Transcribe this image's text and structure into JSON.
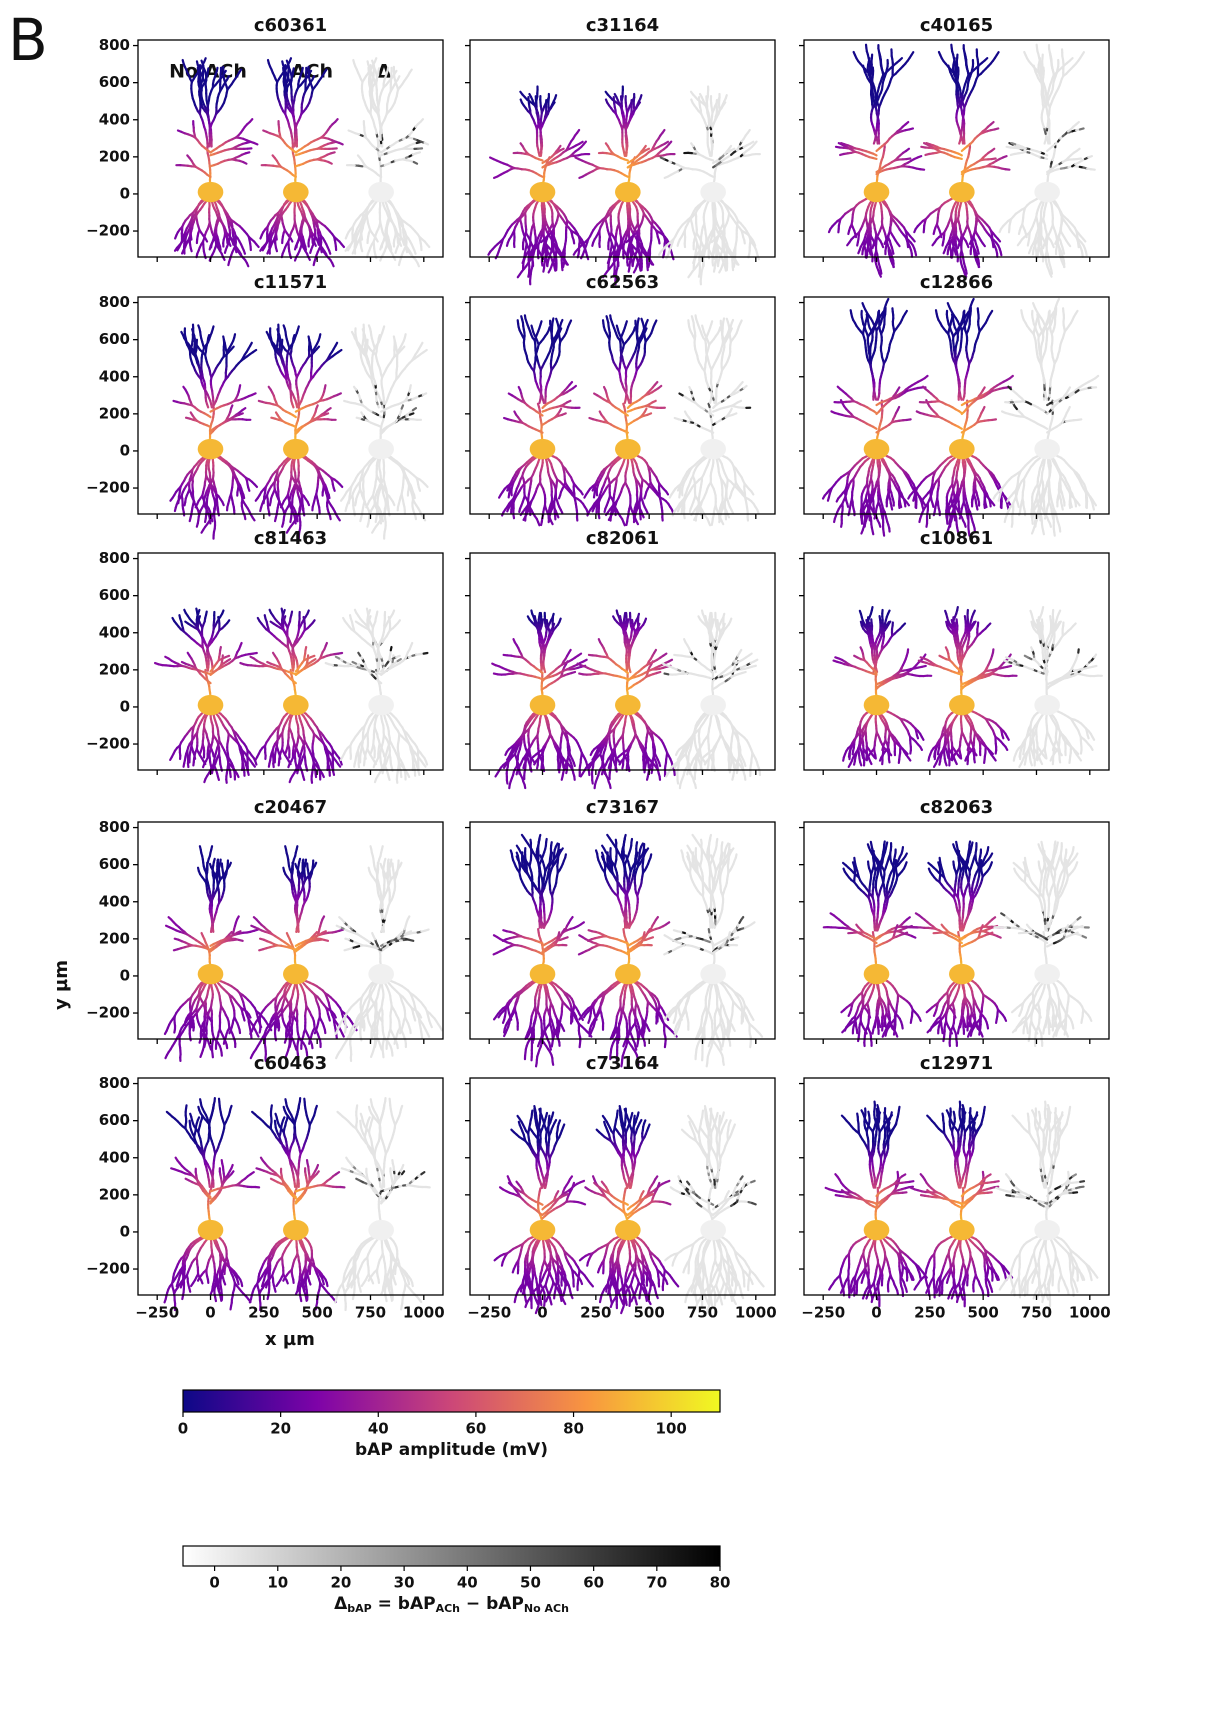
{
  "figure_label": "B",
  "column_labels": [
    "No ACh",
    "ACh",
    "Δ"
  ],
  "axes": {
    "xlabel": "x µm",
    "ylabel": "y µm",
    "xlim": [
      -340,
      1090
    ],
    "ylim": [
      -340,
      830
    ],
    "xticks": [
      {
        "value": -250,
        "label": "−250"
      },
      0,
      250,
      500,
      750,
      1000
    ],
    "yticks": [
      {
        "value": -200,
        "label": "−200"
      },
      0,
      200,
      400,
      600,
      800
    ]
  },
  "chart_data": [
    {
      "type": "neuron",
      "title": "c60361"
    },
    {
      "type": "neuron",
      "title": "c31164"
    },
    {
      "type": "neuron",
      "title": "c40165"
    },
    {
      "type": "neuron",
      "title": "c11571"
    },
    {
      "type": "neuron",
      "title": "c62563"
    },
    {
      "type": "neuron",
      "title": "c12866"
    },
    {
      "type": "neuron",
      "title": "c81463"
    },
    {
      "type": "neuron",
      "title": "c82061"
    },
    {
      "type": "neuron",
      "title": "c10861"
    },
    {
      "type": "neuron",
      "title": "c20467"
    },
    {
      "type": "neuron",
      "title": "c73167"
    },
    {
      "type": "neuron",
      "title": "c82063"
    },
    {
      "type": "neuron",
      "title": "c60463"
    },
    {
      "type": "neuron",
      "title": "c73164"
    },
    {
      "type": "neuron",
      "title": "c12971"
    }
  ],
  "colorbars": [
    {
      "label": "bAP amplitude (mV)",
      "colormap": "plasma",
      "lim": [
        0,
        110
      ],
      "ticks": [
        0,
        20,
        40,
        60,
        80,
        100
      ]
    },
    {
      "label_parts": [
        {
          "text": "Δ"
        },
        {
          "text": "bAP",
          "sub": true
        },
        {
          "text": " = bAP"
        },
        {
          "text": "ACh",
          "sub": true
        },
        {
          "text": " − bAP"
        },
        {
          "text": "No ACh",
          "sub": true
        }
      ],
      "colormap": "gray",
      "lim": [
        -5,
        80
      ],
      "ticks": [
        0,
        10,
        20,
        30,
        40,
        50,
        60,
        70,
        80
      ]
    }
  ]
}
